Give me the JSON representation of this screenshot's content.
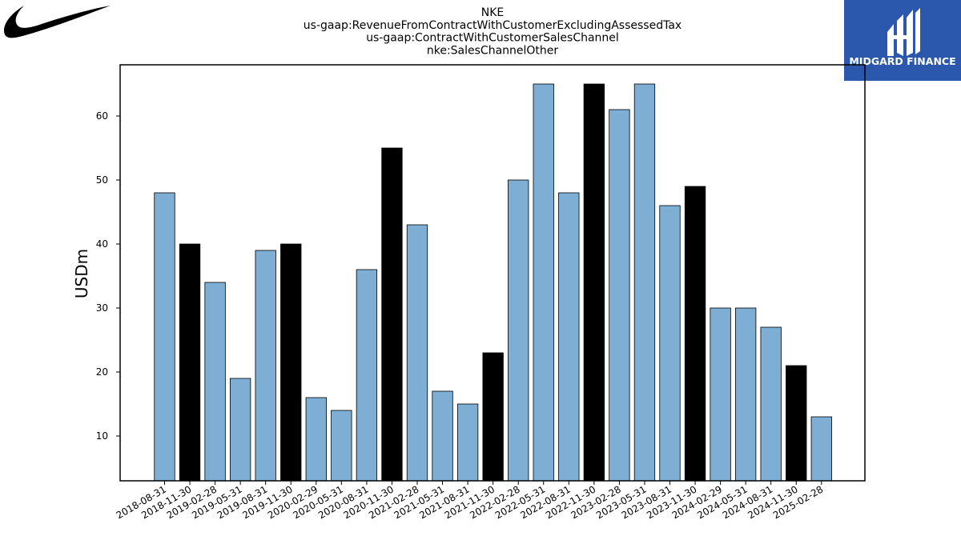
{
  "header": {
    "title_lines": [
      "NKE",
      "us-gaap:RevenueFromContractWithCustomerExcludingAssessedTax",
      "us-gaap:ContractWithCustomerSalesChannel",
      "nke:SalesChannelOther"
    ]
  },
  "logos": {
    "left": {
      "icon": "swoosh-logo",
      "color": "#000000"
    },
    "right": {
      "icon": "midgard-finance-logo",
      "text": "MIDGARD FINANCE",
      "background": "#2b58ad",
      "text_color": "#ffffff"
    }
  },
  "colors": {
    "quarter_bar": "#7eaed3",
    "fiscal_q4_bar": "#000000",
    "bar_edge": "#000000",
    "axis": "#000000"
  },
  "chart_data": {
    "type": "bar",
    "title": "NKE\nus-gaap:RevenueFromContractWithCustomerExcludingAssessedTax\nus-gaap:ContractWithCustomerSalesChannel\nnke:SalesChannelOther",
    "xlabel": "",
    "ylabel": "USDm",
    "ylim": [
      3,
      68
    ],
    "yticks": [
      10,
      20,
      30,
      40,
      50,
      60
    ],
    "grid": false,
    "categories": [
      "2018-08-31",
      "2018-11-30",
      "2019-02-28",
      "2019-05-31",
      "2019-08-31",
      "2019-11-30",
      "2020-02-29",
      "2020-05-31",
      "2020-08-31",
      "2020-11-30",
      "2021-02-28",
      "2021-05-31",
      "2021-08-31",
      "2021-11-30",
      "2022-02-28",
      "2022-05-31",
      "2022-08-31",
      "2022-11-30",
      "2023-02-28",
      "2023-05-31",
      "2023-08-31",
      "2023-11-30",
      "2024-02-29",
      "2024-05-31",
      "2024-08-31",
      "2024-11-30",
      "2025-02-28"
    ],
    "values": [
      48,
      40,
      34,
      19,
      39,
      40,
      16,
      14,
      36,
      55,
      43,
      17,
      15,
      23,
      50,
      65,
      48,
      65,
      61,
      65,
      46,
      49,
      30,
      30,
      27,
      21,
      13
    ],
    "highlight": [
      false,
      true,
      false,
      false,
      false,
      true,
      false,
      false,
      false,
      true,
      false,
      false,
      false,
      true,
      false,
      false,
      false,
      true,
      false,
      false,
      false,
      true,
      false,
      false,
      false,
      true,
      false
    ]
  }
}
